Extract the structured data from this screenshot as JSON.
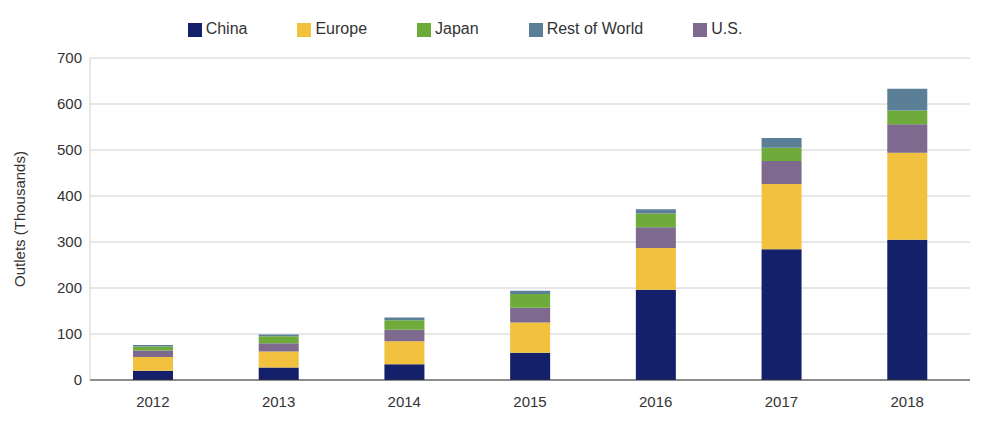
{
  "chart_data": {
    "type": "bar",
    "stacked": true,
    "grid": true,
    "legend": "top",
    "y_label": "Outlets (Thousands)",
    "categories": [
      "2012",
      "2013",
      "2014",
      "2015",
      "2016",
      "2017",
      "2018"
    ],
    "series": [
      {
        "name": "China",
        "color": "#15206b",
        "values": [
          20,
          27,
          34,
          59,
          196,
          284,
          305
        ]
      },
      {
        "name": "Europe",
        "color": "#f2c23e",
        "values": [
          30,
          35,
          50,
          66,
          91,
          142,
          189
        ]
      },
      {
        "name": "U.S.",
        "color": "#7d6a8e",
        "values": [
          14,
          18,
          25,
          32,
          45,
          50,
          62
        ]
      },
      {
        "name": "Japan",
        "color": "#6fab3a",
        "values": [
          9,
          15,
          21,
          30,
          30,
          29,
          30
        ]
      },
      {
        "name": "Rest of World",
        "color": "#5b7f97",
        "values": [
          3,
          4,
          6,
          7,
          9,
          21,
          47
        ]
      }
    ],
    "ylim": [
      0,
      700
    ],
    "yticks": [
      0,
      100,
      200,
      300,
      400,
      500,
      600,
      700
    ]
  }
}
